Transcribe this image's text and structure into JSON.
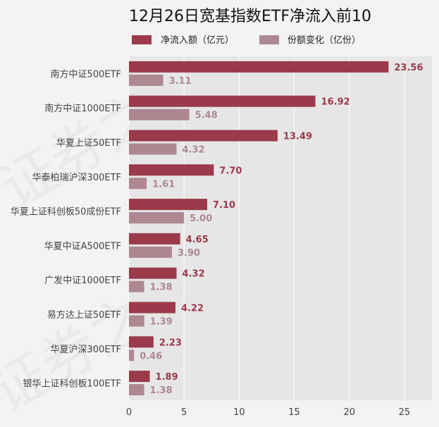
{
  "chart_data": {
    "type": "bar",
    "orientation": "horizontal",
    "title": "12月26日宽基指数ETF净流入前10",
    "categories": [
      "南方中证500ETF",
      "南方中证1000ETF",
      "华夏上证50ETF",
      "华泰柏瑞沪深300ETF",
      "华夏上证科创板50成份ETF",
      "华夏中证A500ETF",
      "广发中证1000ETF",
      "易方达上证50ETF",
      "华夏沪深300ETF",
      "银华上证科创板100ETF"
    ],
    "series": [
      {
        "name": "净流入额（亿元）",
        "color": "#9a3a4a",
        "values": [
          23.56,
          16.92,
          13.49,
          7.7,
          7.1,
          4.65,
          4.32,
          4.22,
          2.23,
          1.89
        ],
        "labels": [
          "23.56",
          "16.92",
          "13.49",
          "7.70",
          "7.10",
          "4.65",
          "4.32",
          "4.22",
          "2.23",
          "1.89"
        ]
      },
      {
        "name": "份额变化（亿份）",
        "color": "#ad8891",
        "values": [
          3.11,
          5.48,
          4.32,
          1.61,
          5.0,
          3.9,
          1.38,
          1.39,
          0.46,
          1.38
        ],
        "labels": [
          "3.11",
          "5.48",
          "4.32",
          "1.61",
          "5.00",
          "3.90",
          "1.38",
          "1.39",
          "0.46",
          "1.38"
        ]
      }
    ],
    "xlim": [
      0,
      27.5
    ],
    "xticks": [
      0,
      5,
      10,
      15,
      20,
      25
    ],
    "xlabel": "",
    "ylabel": "",
    "grid": true,
    "legend_position": "top",
    "background": "#e6e6e6",
    "watermark": "证券之星"
  }
}
